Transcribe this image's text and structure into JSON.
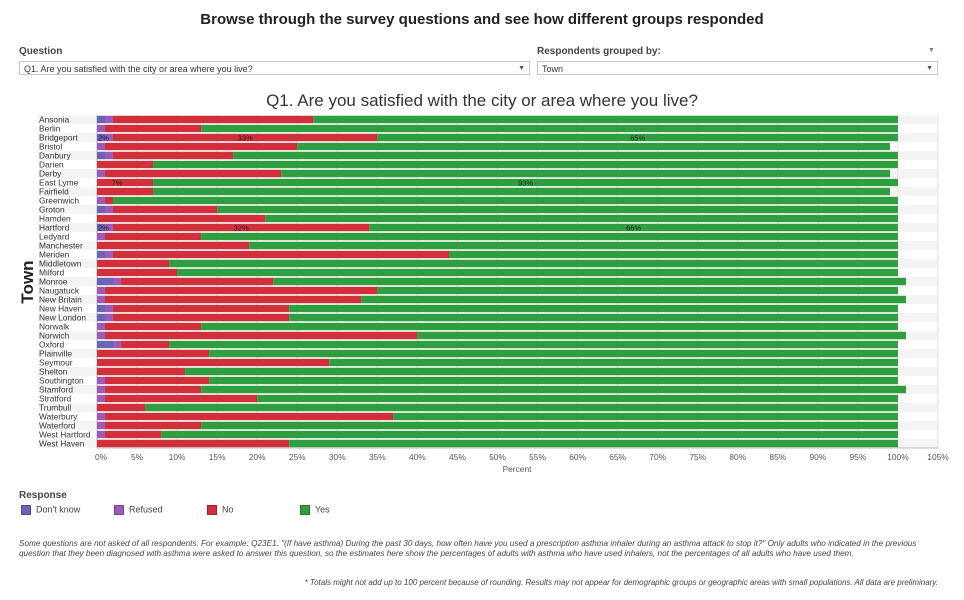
{
  "page": {
    "title": "Browse through the survey questions and see how different groups responded"
  },
  "controls": {
    "question_label": "Question",
    "question_value": "Q1. Are you satisfied with the city or area where you live?",
    "group_label": "Respondents grouped by:",
    "group_value": "Town"
  },
  "legend": {
    "title": "Response",
    "items": [
      {
        "label": "Don't know",
        "color": "#6b63b5"
      },
      {
        "label": "Refused",
        "color": "#9a5cb8"
      },
      {
        "label": "No",
        "color": "#d1303a"
      },
      {
        "label": "Yes",
        "color": "#2e9e3e"
      }
    ]
  },
  "notes": {
    "main": "Some questions are not asked of all respondents. For example: Q23E1. \"(If have asthma) During the past 30 days, how often have you used a prescription asthma inhaler during an asthma attack to stop it?\" Only adults who indicated in the previous question that they been diagnosed with asthma were asked to answer this question, so the estimates here show the percentages of adults with asthma who have used inhalers, not the percentages of all adults who have used them.",
    "disclaimer": "* Totals might not add up to 100 percent because of rounding. Results may not appear for demographic groups or geographic areas with small populations. All data are preliminary."
  },
  "chart_data": {
    "type": "bar",
    "orientation": "horizontal",
    "stacked": true,
    "title": "Q1. Are you satisfied with the city or area where you live?",
    "xlabel": "Percent",
    "ylabel": "Town",
    "xlim": [
      0,
      105
    ],
    "xticks": [
      "0%",
      "5%",
      "10%",
      "15%",
      "20%",
      "25%",
      "30%",
      "35%",
      "40%",
      "45%",
      "50%",
      "55%",
      "60%",
      "65%",
      "70%",
      "75%",
      "80%",
      "85%",
      "90%",
      "95%",
      "100%",
      "105%"
    ],
    "grid": true,
    "categories": [
      "Ansonia",
      "Berlin",
      "Bridgeport",
      "Bristol",
      "Danbury",
      "Darien",
      "Derby",
      "East Lyme",
      "Fairfield",
      "Greenwich",
      "Groton",
      "Hamden",
      "Hartford",
      "Ledyard",
      "Manchester",
      "Meriden",
      "Middletown",
      "Milford",
      "Monroe",
      "Naugatuck",
      "New Britain",
      "New Haven",
      "New London",
      "Norwalk",
      "Norwich",
      "Oxford",
      "Plainville",
      "Seymour",
      "Shelton",
      "Southington",
      "Stamford",
      "Stratford",
      "Trumbull",
      "Waterbury",
      "Waterford",
      "West Hartford",
      "West Haven"
    ],
    "series": [
      {
        "name": "Don't know",
        "color": "#6b63b5",
        "values": [
          1,
          0,
          1,
          0,
          1,
          0,
          0,
          0,
          0,
          0,
          1,
          0,
          1,
          0,
          0,
          1,
          0,
          0,
          2,
          0,
          0,
          1,
          1,
          0,
          0,
          2,
          0,
          0,
          0,
          0,
          0,
          0,
          0,
          0,
          0,
          0,
          0
        ]
      },
      {
        "name": "Refused",
        "color": "#9a5cb8",
        "values": [
          1,
          1,
          1,
          1,
          1,
          0,
          1,
          0,
          0,
          1,
          1,
          0,
          1,
          1,
          0,
          1,
          0,
          0,
          1,
          1,
          1,
          1,
          1,
          1,
          1,
          1,
          0,
          0,
          0,
          1,
          1,
          1,
          0,
          1,
          1,
          1,
          0
        ]
      },
      {
        "name": "No",
        "color": "#d1303a",
        "values": [
          25,
          12,
          33,
          24,
          15,
          7,
          22,
          7,
          7,
          1,
          13,
          21,
          32,
          12,
          19,
          42,
          9,
          10,
          19,
          34,
          32,
          22,
          22,
          12,
          39,
          6,
          14,
          29,
          11,
          13,
          12,
          19,
          6,
          36,
          12,
          7,
          24
        ]
      },
      {
        "name": "Yes",
        "color": "#2e9e3e",
        "values": [
          73,
          87,
          65,
          74,
          83,
          93,
          76,
          93,
          92,
          98,
          85,
          79,
          66,
          87,
          81,
          56,
          91,
          90,
          79,
          65,
          68,
          76,
          76,
          87,
          61,
          91,
          86,
          71,
          89,
          86,
          88,
          80,
          94,
          63,
          87,
          92,
          76
        ]
      }
    ],
    "data_labels": [
      {
        "category": "Bridgeport",
        "labels": [
          "2%",
          "33%",
          "65%"
        ]
      },
      {
        "category": "East Lyme",
        "labels": [
          "7%",
          "93%"
        ]
      },
      {
        "category": "Hartford",
        "labels": [
          "2%",
          "32%",
          "66%"
        ]
      }
    ]
  }
}
